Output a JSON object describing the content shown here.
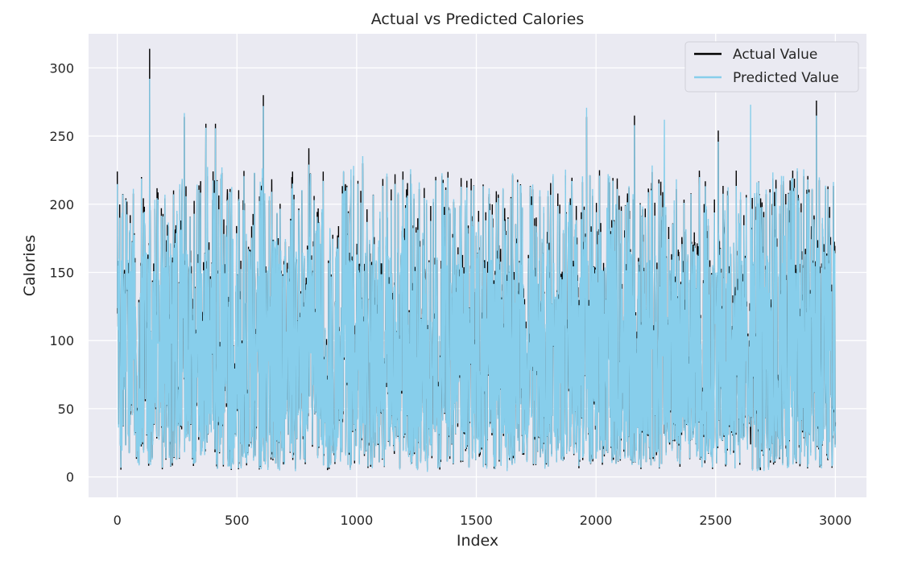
{
  "chart_data": {
    "type": "line",
    "title": "Actual vs Predicted Calories",
    "xlabel": "Index",
    "ylabel": "Calories",
    "xlim": [
      -120,
      3130
    ],
    "ylim": [
      -15,
      325
    ],
    "xticks": [
      0,
      500,
      1000,
      1500,
      2000,
      2500,
      3000
    ],
    "xtick_labels": [
      "0",
      "500",
      "1000",
      "1500",
      "2000",
      "2500",
      "3000"
    ],
    "yticks": [
      0,
      50,
      100,
      150,
      200,
      250,
      300
    ],
    "ytick_labels": [
      "0",
      "50",
      "100",
      "150",
      "200",
      "250",
      "300"
    ],
    "grid": true,
    "legend_position": "top-right",
    "background": "#eaeaf2",
    "series": [
      {
        "name": "Actual Value",
        "color": "#000000",
        "x_start": 0,
        "x_end": 3000,
        "n_points": 3000,
        "peaks": [
          {
            "x": 0,
            "y": 224
          },
          {
            "x": 135,
            "y": 314
          },
          {
            "x": 280,
            "y": 264
          },
          {
            "x": 370,
            "y": 259
          },
          {
            "x": 410,
            "y": 259
          },
          {
            "x": 610,
            "y": 280
          },
          {
            "x": 800,
            "y": 241
          },
          {
            "x": 1025,
            "y": 230
          },
          {
            "x": 1160,
            "y": 222
          },
          {
            "x": 1960,
            "y": 264
          },
          {
            "x": 2160,
            "y": 265
          },
          {
            "x": 2510,
            "y": 254
          },
          {
            "x": 2920,
            "y": 276
          }
        ],
        "y_range": [
          0,
          314
        ]
      },
      {
        "name": "Predicted Value",
        "color": "#87ceeb",
        "x_start": 0,
        "x_end": 3000,
        "n_points": 3000,
        "peaks": [
          {
            "x": 135,
            "y": 292
          },
          {
            "x": 610,
            "y": 272
          },
          {
            "x": 2285,
            "y": 262
          },
          {
            "x": 2645,
            "y": 273
          },
          {
            "x": 2920,
            "y": 265
          }
        ],
        "y_range": [
          0,
          292
        ]
      }
    ]
  }
}
